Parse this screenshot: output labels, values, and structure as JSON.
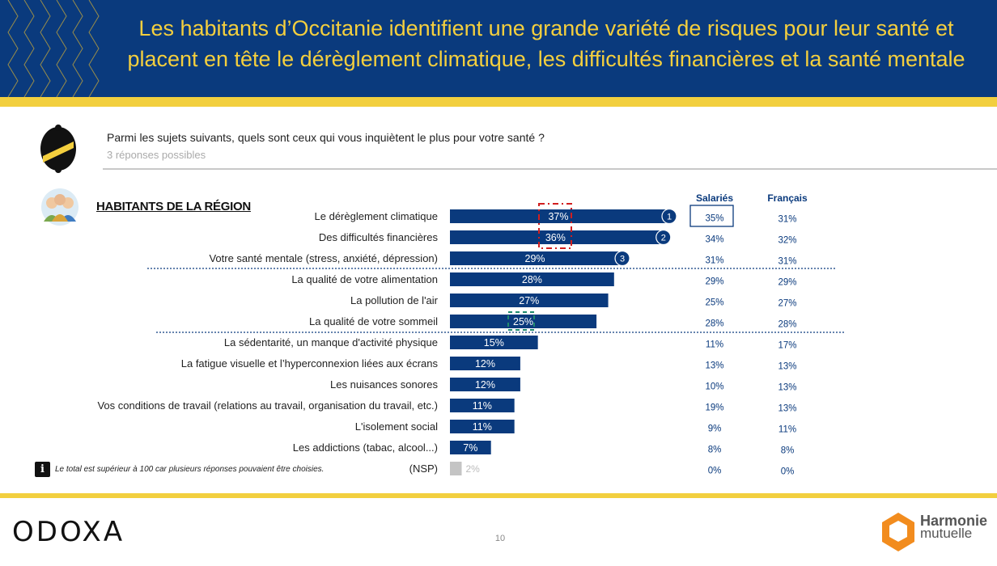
{
  "header": {
    "title": "Les habitants d’Occitanie identifient une grande variété de risques pour leur santé et placent en tête le dérèglement climatique, les difficultés financières et la santé mentale"
  },
  "question": {
    "text": "Parmi les sujets suivants, quels sont ceux qui vous inquiètent le plus pour votre santé ?",
    "subtext": "3 réponses possibles"
  },
  "section_title": "HABITANTS DE LA RÉGION",
  "columns": {
    "salaries": "Salariés",
    "francais": "Français"
  },
  "footnote": {
    "icon": "i",
    "text": "Le total est supérieur à 100 car plusieurs réponses pouvaient être choisies."
  },
  "footer": {
    "brand": "ODOXA",
    "page": "10",
    "partner_line1": "Harmonie",
    "partner_line2": "mutuelle"
  },
  "colors": {
    "navy": "#0a3a7d",
    "yellow": "#f2cf3f",
    "gray_bar": "#c4c4c4",
    "red_box": "#d11f1f",
    "green_box": "#1f8a6e"
  },
  "chart_data": {
    "type": "bar",
    "orientation": "horizontal",
    "title": "HABITANTS DE LA RÉGION",
    "categories": [
      "Le dérèglement climatique",
      "Des difficultés financières",
      "Votre santé mentale (stress, anxiété, dépression)",
      "La qualité de votre alimentation",
      "La pollution de l'air",
      "La qualité de votre sommeil",
      "La sédentarité, un manque d'activité physique",
      "La fatigue visuelle et l’hyperconnexion liées aux écrans",
      "Les nuisances sonores",
      "Vos conditions de travail (relations au travail, organisation du travail, etc.)",
      "L'isolement social",
      "Les addictions (tabac, alcool...)",
      "(NSP)"
    ],
    "values": [
      37,
      36,
      29,
      28,
      27,
      25,
      15,
      12,
      12,
      11,
      11,
      7,
      2
    ],
    "value_labels": [
      "37%",
      "36%",
      "29%",
      "28%",
      "27%",
      "25%",
      "15%",
      "12%",
      "12%",
      "11%",
      "11%",
      "7%",
      "2%"
    ],
    "ranks": [
      "1",
      "2",
      "3"
    ],
    "salaries": [
      "35%",
      "34%",
      "31%",
      "29%",
      "25%",
      "28%",
      "11%",
      "13%",
      "10%",
      "19%",
      "9%",
      "8%",
      "0%"
    ],
    "francais": [
      "31%",
      "32%",
      "31%",
      "29%",
      "27%",
      "28%",
      "17%",
      "13%",
      "13%",
      "13%",
      "11%",
      "8%",
      "0%"
    ],
    "highlight_salaries": "35%",
    "xlim": [
      0,
      37
    ]
  }
}
